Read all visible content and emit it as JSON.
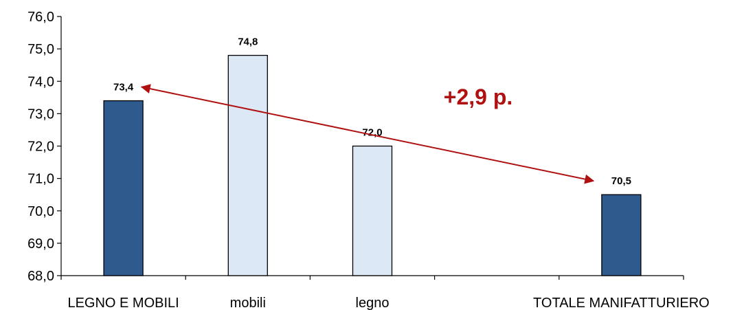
{
  "chart_data": {
    "type": "bar",
    "categories": [
      "LEGNO E MOBILI",
      "mobili",
      "legno",
      "TOTALE MANIFATTURIERO"
    ],
    "values": [
      73.4,
      74.8,
      72.0,
      70.5
    ],
    "data_labels": [
      "73,4",
      "74,8",
      "72,0",
      "70,5"
    ],
    "bar_colors": [
      "#2E5A8E",
      "#DCE8F5",
      "#DCE8F5",
      "#2E5A8E"
    ],
    "ylim": [
      68,
      76
    ],
    "yticks": [
      {
        "value": 68,
        "label": "68,0"
      },
      {
        "value": 69,
        "label": "69,0"
      },
      {
        "value": 70,
        "label": "70,0"
      },
      {
        "value": 71,
        "label": "71,0"
      },
      {
        "value": 72,
        "label": "72,0"
      },
      {
        "value": 73,
        "label": "73,0"
      },
      {
        "value": 74,
        "label": "74,0"
      },
      {
        "value": 75,
        "label": "75,0"
      },
      {
        "value": 76,
        "label": "76,0"
      }
    ],
    "grid": false,
    "title": "",
    "xlabel": "",
    "ylabel": "",
    "annotation": {
      "text": "+2,9 p.",
      "color": "#B01010",
      "from_category": "LEGNO E MOBILI",
      "to_category": "TOTALE MANIFATTURIERO"
    }
  }
}
